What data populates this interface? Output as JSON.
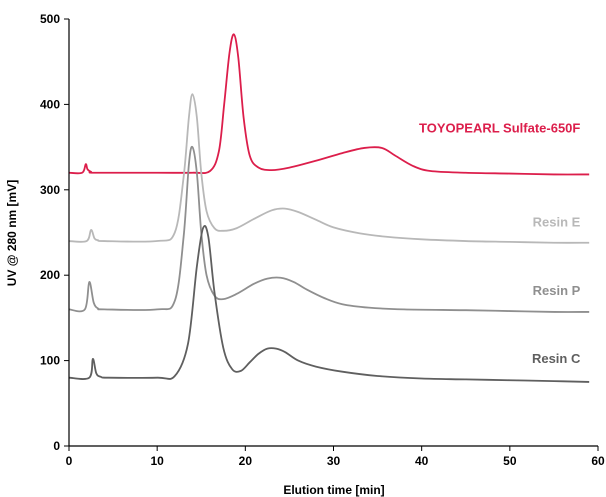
{
  "chart_data": {
    "type": "line",
    "title": "",
    "xlabel": "Elution time [min]",
    "ylabel": "UV @ 280 nm [mV]",
    "xlim": [
      0,
      60
    ],
    "ylim": [
      0,
      500
    ],
    "xticks": [
      "0",
      "10",
      "20",
      "30",
      "40",
      "50",
      "60"
    ],
    "yticks": [
      "0",
      "100",
      "200",
      "300",
      "400",
      "500"
    ],
    "grid": false,
    "legend": "inline labels at right of each trace",
    "series": [
      {
        "name": "TOYOPEARL Sulfate-650F",
        "color": "#dc1e4b",
        "x": [
          0,
          1.5,
          1.9,
          2.1,
          2.5,
          3,
          10,
          14,
          16,
          17,
          17.6,
          18.2,
          18.7,
          19.2,
          19.8,
          20.5,
          21.5,
          23,
          25,
          28,
          31,
          33.5,
          35.5,
          37,
          39,
          41,
          45,
          50,
          55,
          59
        ],
        "y": [
          320,
          320,
          330,
          324,
          321,
          320,
          320,
          320,
          322,
          345,
          400,
          460,
          482,
          455,
          385,
          340,
          326,
          323,
          326,
          334,
          343,
          349,
          349,
          340,
          328,
          322,
          320,
          319,
          318,
          318
        ]
      },
      {
        "name": "Resin E",
        "color": "#b8b8b8",
        "x": [
          0,
          2,
          2.5,
          2.9,
          3.3,
          4,
          10,
          12,
          13,
          13.6,
          14,
          14.5,
          15,
          15.6,
          16.5,
          17.5,
          19,
          21,
          23,
          24.5,
          26,
          28,
          30,
          33,
          36,
          40,
          45,
          50,
          55,
          59
        ],
        "y": [
          240,
          240,
          253,
          243,
          241,
          240,
          240,
          250,
          315,
          385,
          412,
          385,
          320,
          275,
          255,
          252,
          255,
          266,
          276,
          278,
          274,
          265,
          256,
          249,
          245,
          242,
          240,
          239,
          238,
          238
        ]
      },
      {
        "name": "Resin P",
        "color": "#8f8f8f",
        "x": [
          0,
          1.8,
          2.3,
          2.8,
          3.3,
          4,
          10,
          12,
          13,
          13.6,
          14,
          14.5,
          15,
          15.6,
          16.5,
          17.5,
          19,
          21,
          22.5,
          24,
          25.5,
          27,
          29,
          31,
          34,
          38,
          45,
          50,
          55,
          59
        ],
        "y": [
          160,
          160,
          192,
          168,
          161,
          160,
          160,
          170,
          245,
          330,
          350,
          320,
          250,
          200,
          176,
          172,
          178,
          190,
          196,
          197,
          192,
          183,
          173,
          166,
          162,
          160,
          159,
          158,
          157,
          157
        ]
      },
      {
        "name": "Resin C",
        "color": "#5f5f5f",
        "x": [
          0,
          2.3,
          2.7,
          3.1,
          3.6,
          4.5,
          10,
          12,
          13.5,
          14.5,
          15.2,
          15.8,
          16.5,
          17.5,
          18.5,
          19.5,
          20.5,
          21.5,
          22.5,
          23.5,
          24.5,
          26,
          28,
          31,
          35,
          40,
          45,
          50,
          55,
          59
        ],
        "y": [
          80,
          80,
          102,
          85,
          81,
          80,
          80,
          82,
          120,
          210,
          255,
          245,
          180,
          115,
          90,
          88,
          98,
          108,
          114,
          114,
          110,
          100,
          93,
          87,
          82,
          79,
          78,
          77,
          76,
          75
        ]
      }
    ],
    "labels": [
      {
        "text": "TOYOPEARL Sulfate-650F",
        "color": "#dc1e4b",
        "x": 58,
        "y": 367
      },
      {
        "text": "Resin E",
        "color": "#b8b8b8",
        "x": 58,
        "y": 257
      },
      {
        "text": "Resin P",
        "color": "#8f8f8f",
        "x": 58,
        "y": 177
      },
      {
        "text": "Resin C",
        "color": "#5f5f5f",
        "x": 58,
        "y": 97
      }
    ]
  }
}
